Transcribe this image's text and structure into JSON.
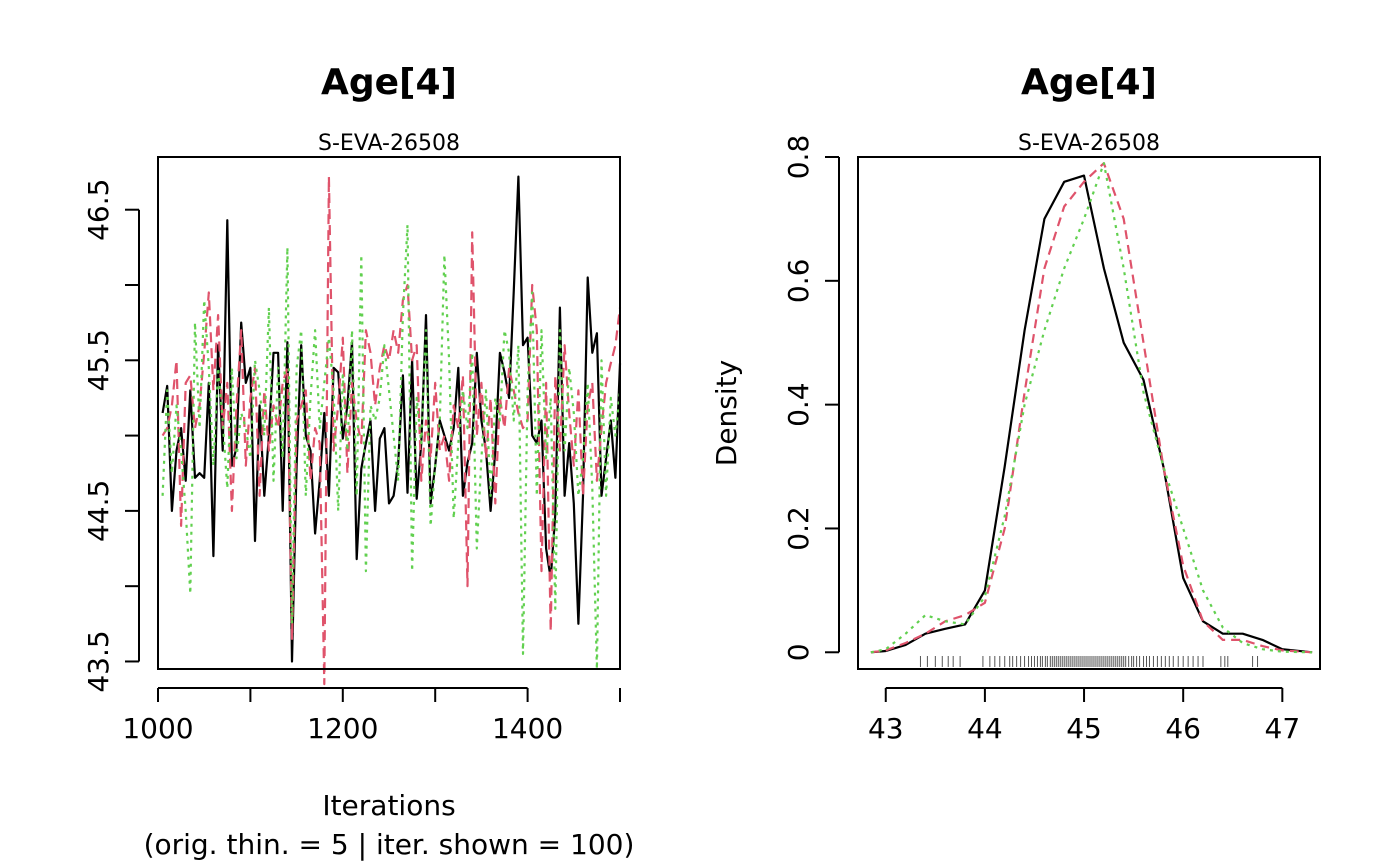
{
  "chart_data": [
    {
      "type": "line",
      "title": "Age[4]",
      "subtitle": "S-EVA-26508",
      "xlabel": "Iterations",
      "xlabel_sub": "(orig. thin. = 5 | iter. shown = 100)",
      "ylabel": "",
      "xlim": [
        1000,
        1500
      ],
      "ylim": [
        43.45,
        46.85
      ],
      "xticks": [
        1000,
        1200,
        1400
      ],
      "yticks": [
        43.5,
        44.5,
        45.5,
        46.5
      ],
      "yticks_minor": [
        44,
        45,
        46
      ],
      "x": [
        1005,
        1010,
        1015,
        1020,
        1025,
        1030,
        1035,
        1040,
        1045,
        1050,
        1055,
        1060,
        1065,
        1070,
        1075,
        1080,
        1085,
        1090,
        1095,
        1100,
        1105,
        1110,
        1115,
        1120,
        1125,
        1130,
        1135,
        1140,
        1145,
        1150,
        1155,
        1160,
        1165,
        1170,
        1175,
        1180,
        1185,
        1190,
        1195,
        1200,
        1205,
        1210,
        1215,
        1220,
        1225,
        1230,
        1235,
        1240,
        1245,
        1250,
        1255,
        1260,
        1265,
        1270,
        1275,
        1280,
        1285,
        1290,
        1295,
        1300,
        1305,
        1310,
        1315,
        1320,
        1325,
        1330,
        1335,
        1340,
        1345,
        1350,
        1355,
        1360,
        1365,
        1370,
        1375,
        1380,
        1385,
        1390,
        1395,
        1400,
        1405,
        1410,
        1415,
        1420,
        1425,
        1430,
        1435,
        1440,
        1445,
        1450,
        1455,
        1460,
        1465,
        1470,
        1475,
        1480,
        1485,
        1490,
        1495,
        1500
      ],
      "series": [
        {
          "color": "#000000",
          "dash": "solid",
          "values": [
            45.15,
            45.33,
            44.5,
            44.9,
            45.05,
            44.7,
            45.3,
            44.72,
            44.75,
            44.72,
            45.35,
            44.2,
            45.6,
            44.9,
            46.43,
            44.8,
            44.92,
            45.75,
            45.35,
            45.45,
            44.3,
            45.2,
            44.6,
            45.0,
            45.55,
            45.55,
            44.5,
            45.62,
            43.5,
            44.8,
            45.6,
            45.0,
            44.9,
            44.35,
            44.7,
            45.15,
            44.6,
            45.45,
            45.42,
            44.98,
            45.2,
            45.62,
            44.18,
            44.78,
            44.95,
            45.1,
            44.5,
            44.98,
            45.05,
            44.55,
            44.6,
            44.82,
            45.4,
            44.62,
            45.5,
            44.58,
            44.95,
            45.8,
            44.55,
            44.8,
            45.1,
            45.0,
            44.9,
            45.05,
            45.45,
            44.6,
            44.82,
            44.95,
            45.55,
            45.1,
            44.9,
            44.5,
            44.9,
            45.55,
            45.42,
            45.25,
            45.95,
            46.72,
            45.6,
            45.65,
            45.0,
            44.95,
            45.1,
            44.25,
            44.05,
            44.48,
            45.85,
            44.6,
            44.95,
            44.55,
            43.75,
            44.6,
            46.05,
            45.55,
            45.68,
            44.6,
            44.85,
            45.1,
            44.72,
            45.48
          ]
        },
        {
          "color": "#DF536B",
          "dash": "10,6",
          "values": [
            45.0,
            45.05,
            45.2,
            45.5,
            44.4,
            45.35,
            45.4,
            45.05,
            45.2,
            45.55,
            45.95,
            45.3,
            45.8,
            45.05,
            45.35,
            44.5,
            45.2,
            45.7,
            44.8,
            45.25,
            45.45,
            44.6,
            45.3,
            44.9,
            45.2,
            45.05,
            45.35,
            45.45,
            43.65,
            45.1,
            45.2,
            45.3,
            44.7,
            45.05,
            44.95,
            43.35,
            46.72,
            44.9,
            45.2,
            45.65,
            44.75,
            45.35,
            45.1,
            44.95,
            45.7,
            45.55,
            45.2,
            45.45,
            45.6,
            45.5,
            45.7,
            45.55,
            45.9,
            46.0,
            45.5,
            45.6,
            44.7,
            45.1,
            44.85,
            45.35,
            44.9,
            45.0,
            44.7,
            45.2,
            45.05,
            45.4,
            44.0,
            46.35,
            45.0,
            45.35,
            44.85,
            45.25,
            44.55,
            45.25,
            45.05,
            45.45,
            45.3,
            45.15,
            45.05,
            45.1,
            46.0,
            45.7,
            44.1,
            45.35,
            43.7,
            45.4,
            44.9,
            45.6,
            45.15,
            44.8,
            45.3,
            44.6,
            45.2,
            45.35,
            44.7,
            45.05,
            45.35,
            45.48,
            45.6,
            45.85
          ]
        },
        {
          "color": "#61D04F",
          "dash": "3,5",
          "values": [
            44.6,
            45.3,
            44.75,
            45.2,
            44.9,
            44.5,
            43.95,
            45.75,
            45.05,
            45.9,
            45.45,
            44.8,
            45.45,
            45.1,
            44.65,
            45.45,
            44.85,
            45.15,
            45.05,
            44.85,
            45.5,
            45.3,
            45.0,
            45.85,
            44.7,
            45.45,
            44.85,
            46.25,
            43.75,
            45.45,
            45.7,
            44.6,
            45.25,
            45.7,
            45.05,
            45.35,
            45.65,
            45.3,
            44.5,
            45.4,
            44.9,
            45.7,
            44.6,
            46.2,
            44.1,
            45.2,
            45.1,
            45.25,
            45.6,
            45.3,
            45.0,
            44.7,
            45.8,
            46.4,
            44.1,
            45.25,
            44.95,
            45.7,
            44.4,
            44.8,
            45.1,
            46.2,
            45.5,
            44.45,
            44.95,
            45.3,
            45.05,
            45.55,
            44.25,
            44.85,
            45.3,
            44.6,
            45.25,
            45.1,
            45.7,
            45.55,
            45.1,
            45.6,
            43.55,
            45.3,
            45.95,
            44.6,
            45.7,
            44.85,
            45.25,
            43.85,
            45.7,
            44.9,
            45.45,
            45.15,
            44.6,
            44.85,
            45.35,
            44.65,
            43.45,
            45.5,
            44.6,
            45.25,
            45.0,
            45.3
          ]
        }
      ]
    },
    {
      "type": "line",
      "title": "Age[4]",
      "subtitle": "S-EVA-26508",
      "xlabel": "",
      "ylabel": "Density",
      "xlim": [
        42.72,
        47.38
      ],
      "ylim": [
        -0.027,
        0.8
      ],
      "xticks": [
        43,
        44,
        45,
        46,
        47
      ],
      "yticks": [
        0.0,
        0.2,
        0.4,
        0.6,
        0.8
      ],
      "x": [
        42.85,
        43.0,
        43.2,
        43.4,
        43.6,
        43.8,
        44.0,
        44.2,
        44.4,
        44.6,
        44.8,
        45.0,
        45.2,
        45.4,
        45.6,
        45.8,
        46.0,
        46.2,
        46.4,
        46.6,
        46.8,
        47.0,
        47.3
      ],
      "series": [
        {
          "color": "#000000",
          "dash": "solid",
          "values": [
            0.0,
            0.002,
            0.012,
            0.03,
            0.038,
            0.045,
            0.1,
            0.3,
            0.52,
            0.7,
            0.76,
            0.77,
            0.62,
            0.5,
            0.44,
            0.3,
            0.12,
            0.05,
            0.03,
            0.03,
            0.02,
            0.005,
            0.0
          ]
        },
        {
          "color": "#DF536B",
          "dash": "9,6",
          "values": [
            0.0,
            0.003,
            0.015,
            0.03,
            0.05,
            0.06,
            0.08,
            0.2,
            0.42,
            0.62,
            0.72,
            0.76,
            0.79,
            0.7,
            0.5,
            0.3,
            0.14,
            0.05,
            0.02,
            0.02,
            0.01,
            0.003,
            0.0
          ]
        },
        {
          "color": "#61D04F",
          "dash": "3,5",
          "values": [
            0.0,
            0.005,
            0.03,
            0.06,
            0.05,
            0.045,
            0.09,
            0.22,
            0.4,
            0.52,
            0.62,
            0.7,
            0.79,
            0.62,
            0.42,
            0.3,
            0.2,
            0.1,
            0.04,
            0.015,
            0.005,
            0.001,
            0.0
          ]
        }
      ],
      "rug_x": [
        43.35,
        43.42,
        43.5,
        43.57,
        43.63,
        43.68,
        43.75,
        43.98,
        44.05,
        44.1,
        44.15,
        44.2,
        44.25,
        44.28,
        44.32,
        44.36,
        44.4,
        44.44,
        44.47,
        44.5,
        44.53,
        44.56,
        44.58,
        44.61,
        44.63,
        44.66,
        44.68,
        44.7,
        44.72,
        44.74,
        44.76,
        44.78,
        44.8,
        44.82,
        44.84,
        44.86,
        44.88,
        44.9,
        44.92,
        44.94,
        44.96,
        44.98,
        45.0,
        45.02,
        45.04,
        45.06,
        45.08,
        45.1,
        45.12,
        45.14,
        45.16,
        45.18,
        45.2,
        45.22,
        45.24,
        45.26,
        45.28,
        45.3,
        45.32,
        45.34,
        45.36,
        45.38,
        45.4,
        45.42,
        45.45,
        45.48,
        45.5,
        45.53,
        45.56,
        45.6,
        45.63,
        45.66,
        45.7,
        45.74,
        45.78,
        45.82,
        45.86,
        45.9,
        45.95,
        46.0,
        46.05,
        46.1,
        46.15,
        46.2,
        46.38,
        46.42,
        46.45,
        46.7,
        46.75
      ]
    }
  ]
}
